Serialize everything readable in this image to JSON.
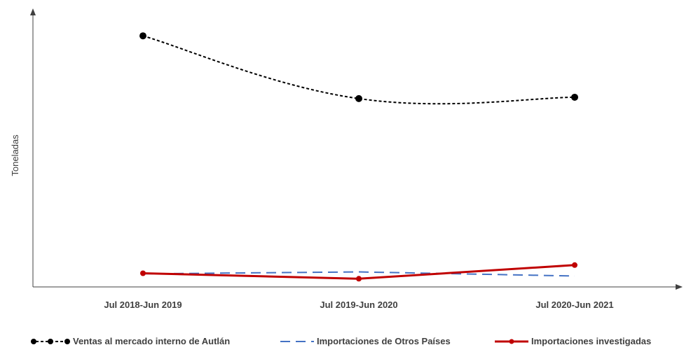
{
  "chart_data": {
    "type": "line",
    "title": "",
    "xlabel": "",
    "ylabel": "Toneladas",
    "categories": [
      "Jul 2018-Jun 2019",
      "Jul 2019-Jun 2020",
      "Jul 2020-Jun 2021"
    ],
    "y_scale": "relative (no tick labels shown)",
    "ylim": [
      0,
      100
    ],
    "grid": false,
    "legend_position": "bottom",
    "series": [
      {
        "name": "Ventas al mercado interno de Autlán",
        "values": [
          92,
          69,
          69.5
        ],
        "color": "#000000",
        "style": "dotted-with-markers"
      },
      {
        "name": "Importaciones de Otros Países",
        "values": [
          4.8,
          5.5,
          4
        ],
        "color": "#4472C4",
        "style": "dashed"
      },
      {
        "name": "Importaciones investigadas",
        "values": [
          5,
          3,
          8
        ],
        "color": "#C00000",
        "style": "solid-with-markers"
      }
    ]
  }
}
